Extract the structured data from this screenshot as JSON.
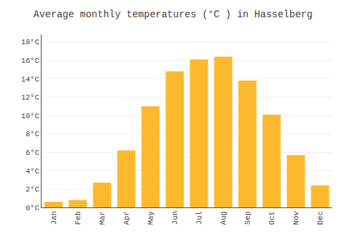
{
  "chart_data": {
    "type": "bar",
    "title": "Average monthly temperatures (°C ) in Hasselberg",
    "categories": [
      "Jan",
      "Feb",
      "Mar",
      "Apr",
      "May",
      "Jun",
      "Jul",
      "Aug",
      "Sep",
      "Oct",
      "Nov",
      "Dec"
    ],
    "values": [
      0.6,
      0.8,
      2.7,
      6.2,
      11.0,
      14.8,
      16.1,
      16.4,
      13.8,
      10.1,
      5.7,
      2.4
    ],
    "color": "#FDB92E",
    "ylim": [
      0,
      18.8
    ],
    "yticks": [
      {
        "value": 0,
        "label": "0°C"
      },
      {
        "value": 2,
        "label": "2°C"
      },
      {
        "value": 4,
        "label": "4°C"
      },
      {
        "value": 6,
        "label": "6°C"
      },
      {
        "value": 8,
        "label": "8°C"
      },
      {
        "value": 10,
        "label": "10°C"
      },
      {
        "value": 12,
        "label": "12°C"
      },
      {
        "value": 14,
        "label": "14°C"
      },
      {
        "value": 16,
        "label": "16°C"
      },
      {
        "value": 18,
        "label": "18°C"
      }
    ],
    "grid": true
  }
}
